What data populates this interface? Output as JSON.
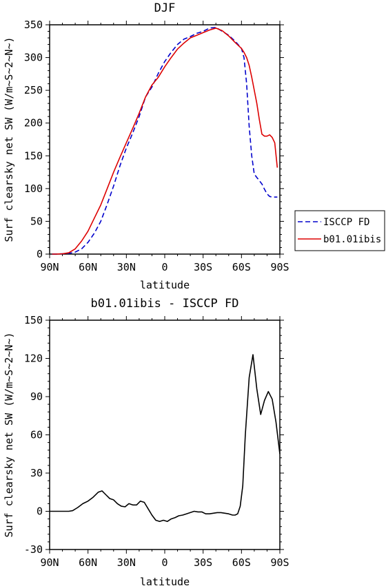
{
  "chart_data": [
    {
      "type": "line",
      "title": "DJF",
      "xlabel": "latitude",
      "ylabel": "Surf clearsky net SW (W/m~S~2~N~)",
      "x_tick_labels": [
        "90N",
        "60N",
        "30N",
        "0",
        "30S",
        "60S",
        "90S"
      ],
      "x_ticks": [
        -90,
        -60,
        -30,
        0,
        30,
        60,
        90
      ],
      "xlim": [
        -90,
        90
      ],
      "ylim": [
        0,
        350
      ],
      "y_ticks": [
        0,
        50,
        100,
        150,
        200,
        250,
        300,
        350
      ],
      "y_tick_labels": [
        "0",
        "50",
        "100",
        "150",
        "200",
        "250",
        "300",
        "350"
      ],
      "grid": false,
      "legend_position": "right",
      "x": [
        -88,
        -85,
        -80,
        -75,
        -70,
        -65,
        -60,
        -55,
        -50,
        -45,
        -40,
        -35,
        -30,
        -25,
        -20,
        -15,
        -10,
        -5,
        0,
        5,
        10,
        15,
        20,
        25,
        30,
        35,
        40,
        45,
        50,
        55,
        60,
        62,
        64,
        66,
        68,
        70,
        72,
        74,
        76,
        78,
        80,
        82,
        84,
        86,
        88
      ],
      "series": [
        {
          "name": "ISCCP FD",
          "color": "#0000cc",
          "dash": "dashed",
          "values": [
            0,
            0,
            0.5,
            1,
            3,
            8,
            18,
            32,
            50,
            76,
            104,
            135,
            162,
            185,
            210,
            240,
            255,
            276,
            294,
            308,
            320,
            328,
            332,
            337,
            340,
            345,
            346,
            340,
            334,
            325,
            314,
            300,
            260,
            195,
            150,
            122,
            117,
            112,
            107,
            99,
            92,
            88,
            87,
            87,
            87
          ]
        },
        {
          "name": "b01.01ibis",
          "color": "#dd0000",
          "dash": "solid",
          "values": [
            0,
            0,
            0.5,
            2,
            8,
            20,
            35,
            55,
            75,
            100,
            125,
            148,
            170,
            192,
            215,
            240,
            258,
            270,
            286,
            300,
            313,
            322,
            330,
            334,
            338,
            342,
            345,
            341,
            333,
            323,
            314,
            308,
            300,
            288,
            270,
            250,
            230,
            205,
            183,
            180,
            180,
            182,
            178,
            170,
            132
          ]
        }
      ]
    },
    {
      "type": "line",
      "title": "b01.01ibis - ISCCP FD",
      "xlabel": "latitude",
      "ylabel": "Surf clearsky net SW (W/m~S~2~N~)",
      "x_tick_labels": [
        "90N",
        "60N",
        "30N",
        "0",
        "30S",
        "60S",
        "90S"
      ],
      "x_ticks": [
        -90,
        -60,
        -30,
        0,
        30,
        60,
        90
      ],
      "xlim": [
        -90,
        90
      ],
      "ylim": [
        -30,
        150
      ],
      "y_ticks": [
        -30,
        0,
        30,
        60,
        90,
        120,
        150
      ],
      "y_tick_labels": [
        "-30",
        "0",
        "30",
        "60",
        "90",
        "120",
        "150"
      ],
      "grid": false,
      "x": [
        -90,
        -85,
        -80,
        -75,
        -72,
        -68,
        -64,
        -60,
        -56,
        -52,
        -49,
        -46,
        -43,
        -40,
        -37,
        -34,
        -31,
        -28,
        -25,
        -22,
        -19,
        -16,
        -13,
        -10,
        -7,
        -4,
        -1,
        2,
        5,
        8,
        11,
        14,
        17,
        20,
        23,
        26,
        29,
        32,
        35,
        38,
        41,
        44,
        47,
        50,
        53,
        55,
        57,
        59,
        61,
        63,
        66,
        69,
        72,
        75,
        78,
        81,
        84,
        87,
        90
      ],
      "series": [
        {
          "name": "",
          "color": "#000000",
          "dash": "solid",
          "values": [
            0,
            0,
            0,
            0,
            0.5,
            3,
            6,
            8,
            11,
            15,
            16,
            13,
            10,
            9,
            6,
            4,
            3.5,
            6,
            5,
            5,
            8,
            7,
            2,
            -3,
            -7,
            -8,
            -7,
            -8,
            -6,
            -5,
            -3.5,
            -3,
            -2,
            -1,
            0,
            -0.5,
            -0.5,
            -2,
            -2,
            -1.5,
            -1,
            -1,
            -1.5,
            -2,
            -3,
            -3,
            -2,
            4,
            20,
            60,
            105,
            123,
            96,
            76,
            87,
            94,
            88,
            70,
            45
          ]
        }
      ]
    }
  ]
}
